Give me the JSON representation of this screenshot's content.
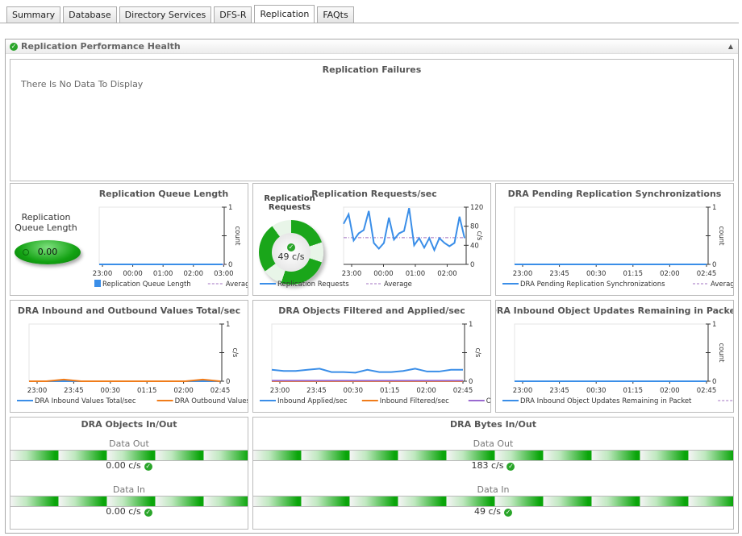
{
  "tabs": [
    "Summary",
    "Database",
    "Directory Services",
    "DFS-R",
    "Replication",
    "FAQts"
  ],
  "active_tab": "Replication",
  "panel": {
    "title": "Replication Performance Health",
    "status_icon": "check-circle-icon"
  },
  "failures": {
    "title": "Replication Failures",
    "message": "There Is No Data To Display"
  },
  "queue": {
    "gauge_label": "Replication Queue Length",
    "gauge_value": "0.00"
  },
  "requests": {
    "gauge_label": "Replication Requests",
    "gauge_value": "49 c/s"
  },
  "objects_inout": {
    "title": "DRA Objects In/Out",
    "out_label": "Data Out",
    "out_value": "0.00 c/s",
    "in_label": "Data In",
    "in_value": "0.00 c/s"
  },
  "bytes_inout": {
    "title": "DRA Bytes In/Out",
    "out_label": "Data Out",
    "out_value": "183 c/s",
    "in_label": "Data In",
    "in_value": "49 c/s"
  },
  "colors": {
    "blue": "#3a8ee8",
    "orange": "#f07c1a",
    "purple": "#9a6ad0",
    "avg": "#a070c0",
    "green": "#13a213"
  },
  "chart_data": [
    {
      "id": "queue",
      "type": "line",
      "title": "Replication Queue Length",
      "ylabel": "count",
      "ylim": [
        0,
        1
      ],
      "yticks": [
        "0",
        "1"
      ],
      "xticks": [
        "23:00",
        "00:00",
        "01:00",
        "02:00",
        "03:00"
      ],
      "legend": [
        "Replication Queue Length",
        "Average"
      ],
      "series": [
        {
          "name": "Replication Queue Length",
          "color": "#3a8ee8",
          "values": [
            0,
            0,
            0,
            0,
            0
          ]
        }
      ],
      "average": 0
    },
    {
      "id": "requests",
      "type": "line",
      "title": "Replication Requests/sec",
      "ylabel": "c/s",
      "ylim": [
        0,
        120
      ],
      "yticks": [
        "0",
        "40",
        "80",
        "120"
      ],
      "xticks": [
        "23:00",
        "00:00",
        "01:00",
        "02:00"
      ],
      "legend": [
        "Replication Requests",
        "Average"
      ],
      "average": 56,
      "series": [
        {
          "name": "Replication Requests",
          "color": "#3a8ee8",
          "values": [
            85,
            105,
            50,
            65,
            72,
            112,
            45,
            33,
            45,
            98,
            52,
            65,
            70,
            118,
            40,
            55,
            35,
            55,
            30,
            55,
            45,
            38,
            45,
            100,
            55
          ]
        }
      ]
    },
    {
      "id": "pending",
      "type": "line",
      "title": "DRA Pending Replication Synchronizations",
      "ylabel": "count",
      "ylim": [
        0,
        1
      ],
      "yticks": [
        "0",
        "1"
      ],
      "xticks": [
        "23:00",
        "23:45",
        "00:30",
        "01:15",
        "02:00",
        "02:45"
      ],
      "legend": [
        "DRA Pending Replication Synchronizations",
        "Average"
      ],
      "series": [
        {
          "name": "DRA Pending Replication Synchronizations",
          "color": "#3a8ee8",
          "values": [
            0,
            0,
            0,
            0,
            0,
            0
          ]
        }
      ],
      "average": 0
    },
    {
      "id": "values",
      "type": "line",
      "title": "DRA Inbound and Outbound Values Total/sec",
      "ylabel": "c/s",
      "ylim": [
        0,
        1
      ],
      "yticks": [
        "0",
        "1"
      ],
      "xticks": [
        "23:00",
        "23:45",
        "00:30",
        "01:15",
        "02:00",
        "02:45"
      ],
      "legend": [
        "DRA Inbound Values Total/sec",
        "DRA Outbound Values Tota"
      ],
      "series": [
        {
          "name": "DRA Inbound Values Total/sec",
          "color": "#3a8ee8",
          "values": [
            0,
            0,
            0,
            0,
            0,
            0,
            0,
            0,
            0,
            0,
            0,
            0
          ]
        },
        {
          "name": "DRA Outbound Values Tota",
          "color": "#f07c1a",
          "values": [
            0,
            0,
            0.03,
            0,
            0,
            0,
            0,
            0,
            0,
            0,
            0.03,
            0
          ]
        }
      ]
    },
    {
      "id": "filtered",
      "type": "line",
      "title": "DRA Objects Filtered and Applied/sec",
      "ylabel": "c/s",
      "ylim": [
        0,
        1
      ],
      "yticks": [
        "0",
        "1"
      ],
      "xticks": [
        "23:00",
        "23:45",
        "00:30",
        "01:15",
        "02:00",
        "02:45"
      ],
      "legend": [
        "Inbound Applied/sec",
        "Inbound Filtered/sec",
        "Outbound F"
      ],
      "series": [
        {
          "name": "Inbound Applied/sec",
          "color": "#3a8ee8",
          "values": [
            0.2,
            0.18,
            0.18,
            0.2,
            0.22,
            0.16,
            0.16,
            0.15,
            0.2,
            0.16,
            0.16,
            0.18,
            0.22,
            0.17,
            0.17,
            0.2,
            0.2
          ]
        },
        {
          "name": "Inbound Filtered/sec",
          "color": "#f07c1a",
          "values": [
            0,
            0,
            0,
            0,
            0,
            0,
            0,
            0,
            0,
            0,
            0,
            0,
            0,
            0,
            0,
            0,
            0
          ]
        },
        {
          "name": "Outbound F",
          "color": "#9a6ad0",
          "values": [
            0.01,
            0.01,
            0.01,
            0.01,
            0.01,
            0.01,
            0.01,
            0.01,
            0.01,
            0.01,
            0.01,
            0.01,
            0.01,
            0.01,
            0.01,
            0.01,
            0.01
          ]
        }
      ]
    },
    {
      "id": "remaining",
      "type": "line",
      "title": "DRA Inbound Object Updates Remaining in Packet",
      "ylabel": "count",
      "ylim": [
        0,
        1
      ],
      "yticks": [
        "0",
        "1"
      ],
      "xticks": [
        "23:00",
        "23:45",
        "00:30",
        "01:15",
        "02:00",
        "02:45"
      ],
      "legend": [
        "DRA Inbound Object Updates Remaining in Packet",
        "Average"
      ],
      "series": [
        {
          "name": "DRA Inbound Object Updates Remaining in Packet",
          "color": "#3a8ee8",
          "values": [
            0,
            0,
            0,
            0,
            0,
            0
          ]
        }
      ],
      "average": 0
    }
  ]
}
